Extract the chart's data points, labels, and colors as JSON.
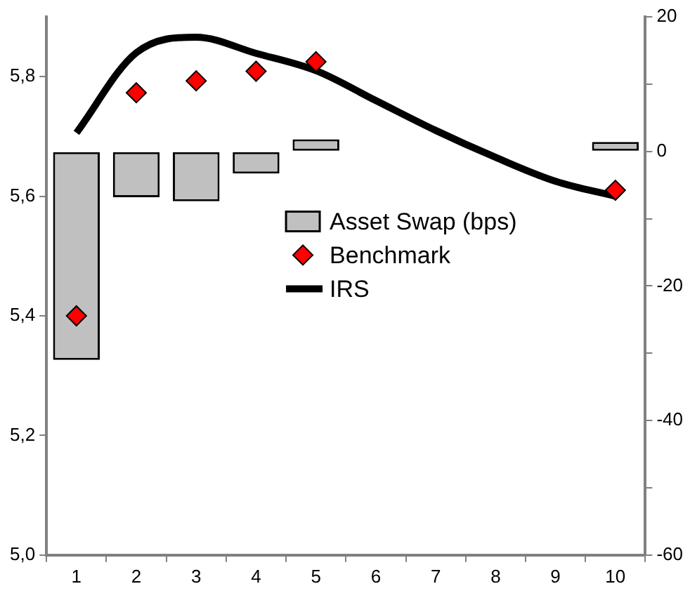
{
  "chart_data": {
    "type": "bar",
    "categories": [
      "1",
      "2",
      "3",
      "4",
      "5",
      "6",
      "7",
      "8",
      "9",
      "10"
    ],
    "series": [
      {
        "name": "Asset Swap (bps)",
        "axis": "y2",
        "color": "#c0c0c0",
        "values": [
          -31,
          -6.8,
          -7.4,
          -3.3,
          1.8,
          null,
          null,
          null,
          null,
          1.4
        ]
      },
      {
        "name": "Benchmark",
        "type": "scatter",
        "marker": "diamond",
        "color": "#ff0000",
        "values": [
          5.4,
          5.773,
          5.793,
          5.809,
          5.825,
          null,
          null,
          null,
          null,
          5.61
        ]
      },
      {
        "name": "IRS",
        "type": "line",
        "marker": "none",
        "line_style": "solid",
        "color": "#000000",
        "values": [
          5.706,
          5.84,
          5.866,
          5.839,
          5.81,
          5.76,
          5.71,
          5.665,
          5.625,
          5.6
        ]
      }
    ],
    "ylim": [
      5.0,
      5.9
    ],
    "yticks": [
      {
        "value": 5.0,
        "label": "5,0"
      },
      {
        "value": 5.2,
        "label": "5,2"
      },
      {
        "value": 5.4,
        "label": "5,4"
      },
      {
        "value": 5.6,
        "label": "5,6"
      },
      {
        "value": 5.8,
        "label": "5,8"
      }
    ],
    "y2lim": [
      -60,
      20
    ],
    "y2ticks": [
      -60,
      {
        "value": -50,
        "label": null
      },
      -40,
      {
        "value": -30,
        "label": null
      },
      -20,
      {
        "value": -10,
        "label": null
      },
      0,
      {
        "value": 10,
        "label": null
      },
      20
    ],
    "grid": false,
    "legend": "right"
  }
}
